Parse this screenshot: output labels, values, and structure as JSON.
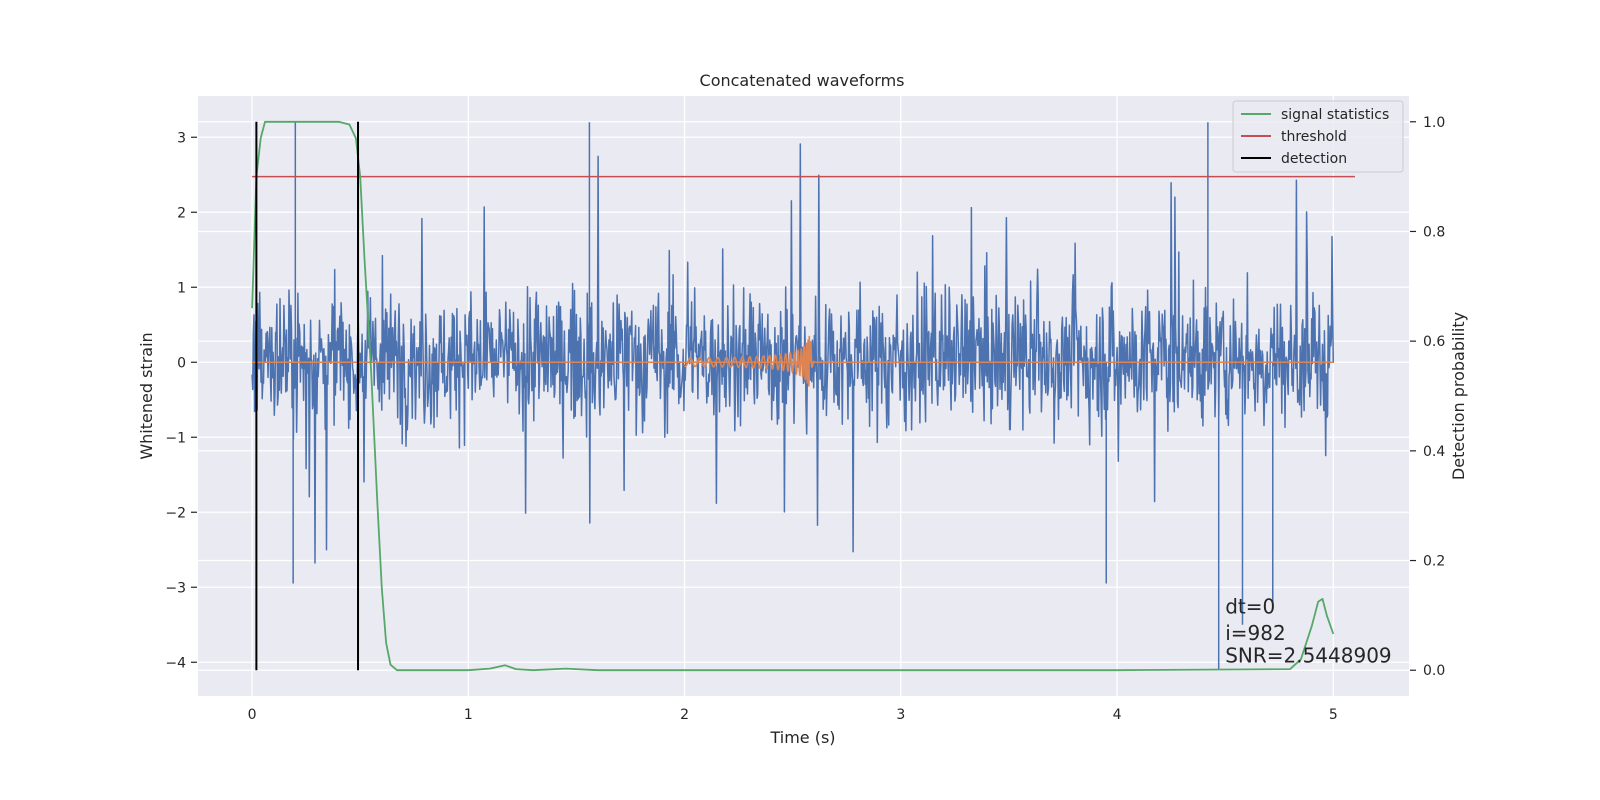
{
  "chart_data": {
    "type": "line",
    "title": "Concatenated waveforms",
    "xlabel": "Time (s)",
    "ylabel": "Whitened strain",
    "y2label": "Detection probability",
    "xlim": [
      -0.25,
      5.35
    ],
    "ylim": [
      -4.45,
      3.55
    ],
    "y2lim": [
      -0.047,
      1.047
    ],
    "x_ticks": [
      0,
      1,
      2,
      3,
      4,
      5
    ],
    "x_tick_labels": [
      "0",
      "1",
      "2",
      "3",
      "4",
      "5"
    ],
    "y_ticks": [
      -4,
      -3,
      -2,
      -1,
      0,
      1,
      2,
      3
    ],
    "y_tick_labels": [
      "−4",
      "−3",
      "−2",
      "−1",
      "0",
      "1",
      "2",
      "3"
    ],
    "y2_ticks": [
      0.0,
      0.2,
      0.4,
      0.6,
      0.8,
      1.0
    ],
    "y2_tick_labels": [
      "0.0",
      "0.2",
      "0.4",
      "0.6",
      "0.8",
      "1.0"
    ],
    "grid": true,
    "legend_position": "top-right",
    "legend": [
      {
        "label": "signal statistics",
        "color": "#55a868"
      },
      {
        "label": "threshold",
        "color": "#c44e52"
      },
      {
        "label": "detection",
        "color": "#000000"
      }
    ],
    "colors": {
      "strain": "#4c72b0",
      "template": "#dd8452",
      "background": "#eaeaf2"
    },
    "strain_noise": {
      "x_range": [
        0,
        5
      ],
      "typical_range": [
        -1.2,
        1.4
      ],
      "max": 3.2,
      "min": -4.1
    },
    "template_waveform": {
      "x_range": [
        2.0,
        2.6
      ],
      "peak_amplitude": 0.6,
      "merger_time": 2.58
    },
    "threshold": {
      "y2": 0.9,
      "x_range": [
        0,
        5.1
      ]
    },
    "detections": [
      0.02,
      0.49
    ],
    "signal_statistics": {
      "x": [
        0.0,
        0.02,
        0.04,
        0.06,
        0.1,
        0.2,
        0.3,
        0.4,
        0.45,
        0.48,
        0.5,
        0.52,
        0.55,
        0.58,
        0.6,
        0.62,
        0.64,
        0.67,
        0.7,
        1.0,
        1.1,
        1.17,
        1.22,
        1.3,
        1.45,
        1.6,
        2.0,
        3.0,
        4.0,
        4.8,
        4.85,
        4.9,
        4.93,
        4.95,
        4.97,
        5.0
      ],
      "y2": [
        0.66,
        0.9,
        0.97,
        1.0,
        1.0,
        1.0,
        1.0,
        1.0,
        0.995,
        0.97,
        0.9,
        0.75,
        0.55,
        0.3,
        0.15,
        0.05,
        0.01,
        0.0,
        0.0,
        0.0,
        0.003,
        0.009,
        0.002,
        0.0,
        0.003,
        0.0,
        0.0,
        0.0,
        0.0,
        0.002,
        0.02,
        0.08,
        0.125,
        0.13,
        0.1,
        0.066
      ]
    },
    "annotations": [
      {
        "text": "dt=0",
        "x": 4.5,
        "y": -3.35
      },
      {
        "text": "i=982",
        "x": 4.5,
        "y": -3.7
      },
      {
        "text": "SNR=2.5448909",
        "x": 4.5,
        "y": -4.0
      }
    ]
  }
}
